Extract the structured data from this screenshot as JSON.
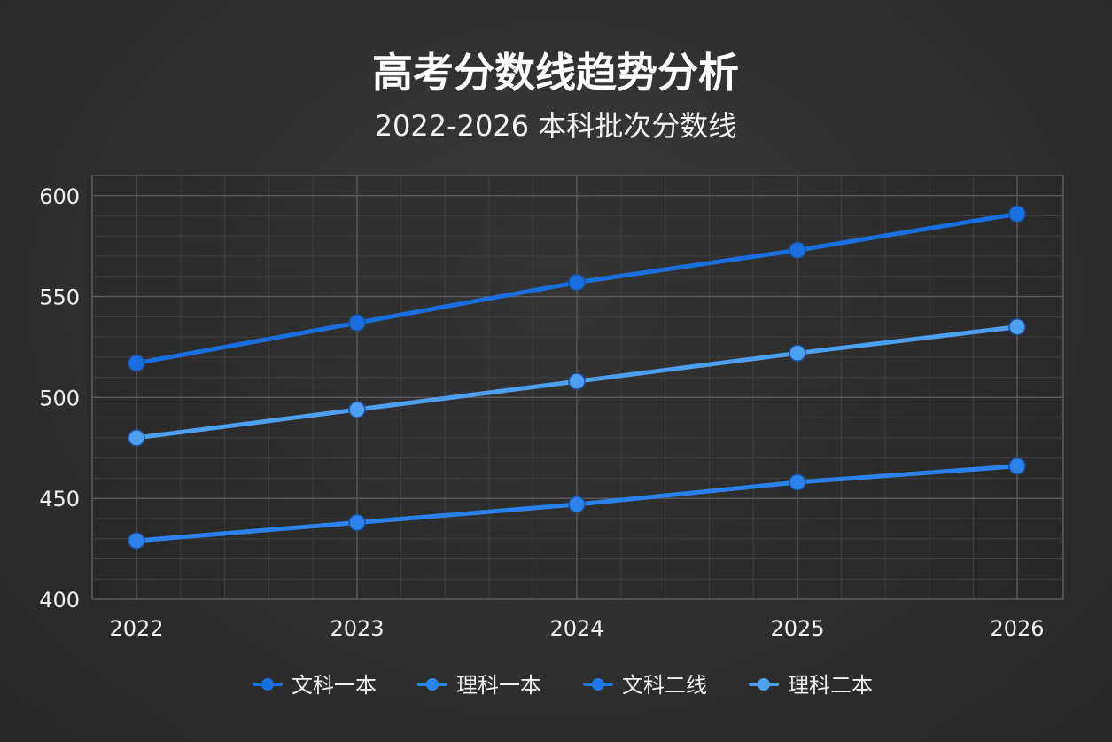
{
  "chart_data": {
    "type": "line",
    "title": "高考分数线趋势分析",
    "subtitle": "2022-2026 本科批次分数线",
    "x": [
      "2022",
      "2023",
      "2024",
      "2025",
      "2026"
    ],
    "yticks": [
      400,
      450,
      500,
      550,
      600
    ],
    "ylim": [
      400,
      610
    ],
    "grid": true,
    "legend_placement": "bottom-center",
    "series": [
      {
        "name": "文科一本",
        "color": "#1a6fe0",
        "values": [
          517,
          537,
          557,
          573,
          591
        ]
      },
      {
        "name": "理科一本",
        "color": "#2a82ea",
        "values": [
          429,
          438,
          447,
          458,
          466
        ]
      },
      {
        "name": "文科二线",
        "color": "#1f78e6",
        "values": [
          null,
          null,
          null,
          null,
          null
        ]
      },
      {
        "name": "理科二本",
        "color": "#4f9ff0",
        "values": [
          480,
          494,
          508,
          522,
          535
        ]
      }
    ]
  }
}
